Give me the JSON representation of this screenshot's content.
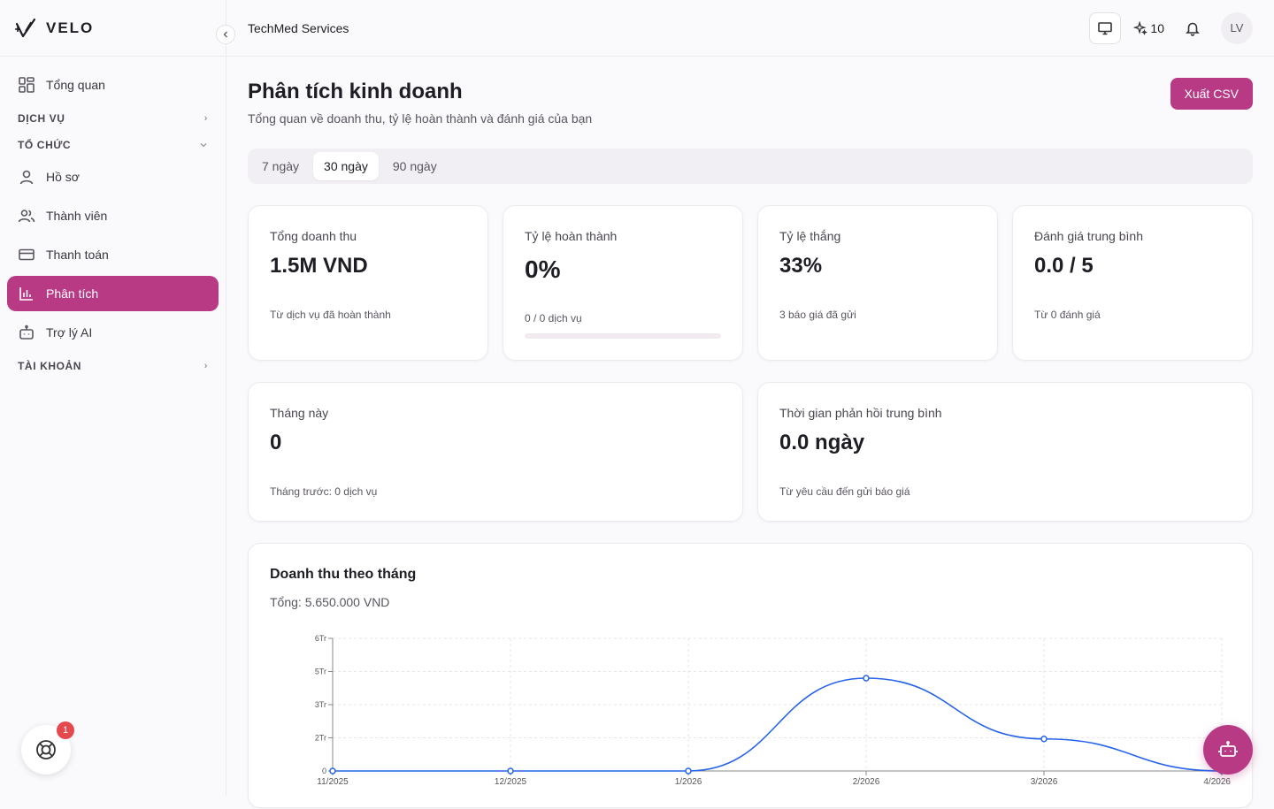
{
  "brand": {
    "name": "VELO"
  },
  "sidebar": {
    "items": [
      {
        "label": "Tổng quan"
      },
      {
        "label": "DỊCH VỤ"
      },
      {
        "label": "TỔ CHỨC"
      },
      {
        "label": "Hồ sơ"
      },
      {
        "label": "Thành viên"
      },
      {
        "label": "Thanh toán"
      },
      {
        "label": "Phân tích"
      },
      {
        "label": "Trợ lý AI"
      },
      {
        "label": "TÀI KHOẢN"
      }
    ],
    "help_badge": "1"
  },
  "topbar": {
    "org_name": "TechMed Services",
    "credits": "10",
    "avatar_initials": "LV"
  },
  "page": {
    "title": "Phân tích kinh doanh",
    "subtitle": "Tổng quan về doanh thu, tỷ lệ hoàn thành và đánh giá của bạn",
    "export_label": "Xuất CSV",
    "range_tabs": [
      "7 ngày",
      "30 ngày",
      "90 ngày"
    ],
    "active_range": "30 ngày"
  },
  "stats": [
    {
      "label": "Tổng doanh thu",
      "value": "1.5M VND",
      "note": "Từ dịch vụ đã hoàn thành"
    },
    {
      "label": "Tỷ lệ hoàn thành",
      "value": "0%",
      "note": "0 / 0 dịch vụ",
      "progress": 0
    },
    {
      "label": "Tỷ lệ thắng",
      "value": "33%",
      "note": "3 báo giá đã gửi"
    },
    {
      "label": "Đánh giá trung bình",
      "value": "0.0 / 5",
      "note": "Từ 0 đánh giá"
    }
  ],
  "stats2": [
    {
      "label": "Tháng này",
      "value": "0",
      "note": "Tháng trước: 0 dịch vụ"
    },
    {
      "label": "Thời gian phản hồi trung bình",
      "value": "0.0 ngày",
      "note": "Từ yêu cầu đến gửi báo giá"
    }
  ],
  "chart": {
    "title": "Doanh thu theo tháng",
    "total": "Tổng: 5.650.000 VND"
  },
  "chart_data": {
    "type": "line",
    "title": "Doanh thu theo tháng",
    "categories": [
      "11/2025",
      "12/2025",
      "1/2026",
      "2/2026",
      "3/2026",
      "4/2026"
    ],
    "series": [
      {
        "values": [
          0,
          0,
          0,
          4200000,
          1450000,
          0
        ]
      }
    ],
    "ylim": [
      0,
      6000000
    ],
    "yticks": [
      0,
      1500000,
      3000000,
      4500000,
      6000000
    ],
    "ytick_labels": [
      "0",
      "2Tr",
      "3Tr",
      "5Tr",
      "6Tr"
    ],
    "line_color": "#2563eb",
    "grid": true
  },
  "colors": {
    "accent": "#b83a85",
    "line": "#2563eb"
  }
}
